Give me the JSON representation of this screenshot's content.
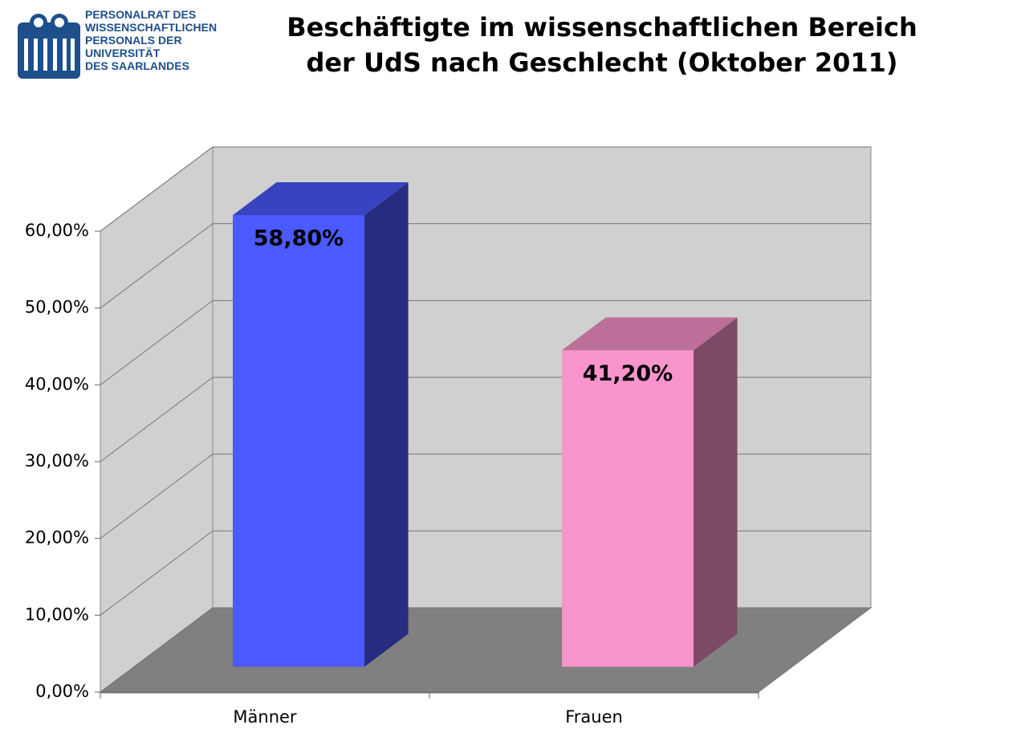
{
  "logo": {
    "text": "PERSONALRAT DES\nWISSENSCHAFTLICHEN\nPERSONALS DER\nUNIVERSITÄT\nDES SAARLANDES"
  },
  "chart_data": {
    "type": "bar3d",
    "title": "Beschäftigte im wissenschaftlichen Bereich\nder UdS nach Geschlecht (Oktober 2011)",
    "categories": [
      "Männer",
      "Frauen"
    ],
    "values": [
      58.8,
      41.2
    ],
    "value_labels": [
      "58,80%",
      "41,20%"
    ],
    "colors": [
      "#4b5aff",
      "#f994cc"
    ],
    "ylim": [
      0,
      60
    ],
    "yticks": [
      {
        "value": 0,
        "label": "0,00%"
      },
      {
        "value": 10,
        "label": "10,00%"
      },
      {
        "value": 20,
        "label": "20,00%"
      },
      {
        "value": 30,
        "label": "30,00%"
      },
      {
        "value": 40,
        "label": "40,00%"
      },
      {
        "value": 50,
        "label": "50,00%"
      },
      {
        "value": 60,
        "label": "60,00%"
      }
    ],
    "grid": true
  }
}
